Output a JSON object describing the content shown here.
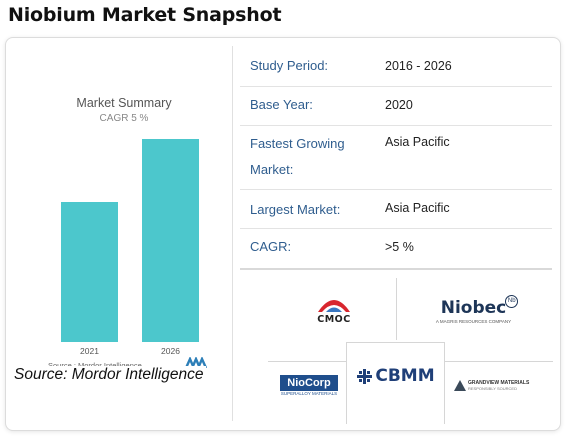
{
  "page": {
    "title": "Niobium Market Snapshot",
    "source_caption": "Source: Mordor Intelligence"
  },
  "chart_data": {
    "type": "bar",
    "title": "Market Summary",
    "subtitle": "CAGR 5 %",
    "categories": [
      "2021",
      "2026"
    ],
    "values": [
      0.69,
      1.0
    ],
    "source": "Source : Mordor Intelligence",
    "color": "#4cc7cc",
    "grid": false,
    "legend": "none"
  },
  "summary": {
    "rows": [
      {
        "label": "Study Period:",
        "value": "2016 - 2026"
      },
      {
        "label": "Base Year:",
        "value": "2020"
      },
      {
        "label_l1": "Fastest Growing",
        "label_l2": "Market:",
        "value": "Asia Pacific"
      },
      {
        "label": "Largest Market:",
        "value": "Asia Pacific"
      },
      {
        "label": "CAGR:",
        "value": ">5 %"
      }
    ]
  },
  "logos": {
    "cmoc": "CMOC",
    "niobec": "Niobec",
    "niobec_tag": "A MAGRIS RESOURCES COMPANY",
    "niocorp": "NioCorp",
    "niocorp_tag": "SUPERALLOY MATERIALS",
    "cbmm": "CBMM",
    "grandview": "GRANDVIEW MATERIALS",
    "grandview_tag": "RESPONSIBLY SOURCED"
  }
}
